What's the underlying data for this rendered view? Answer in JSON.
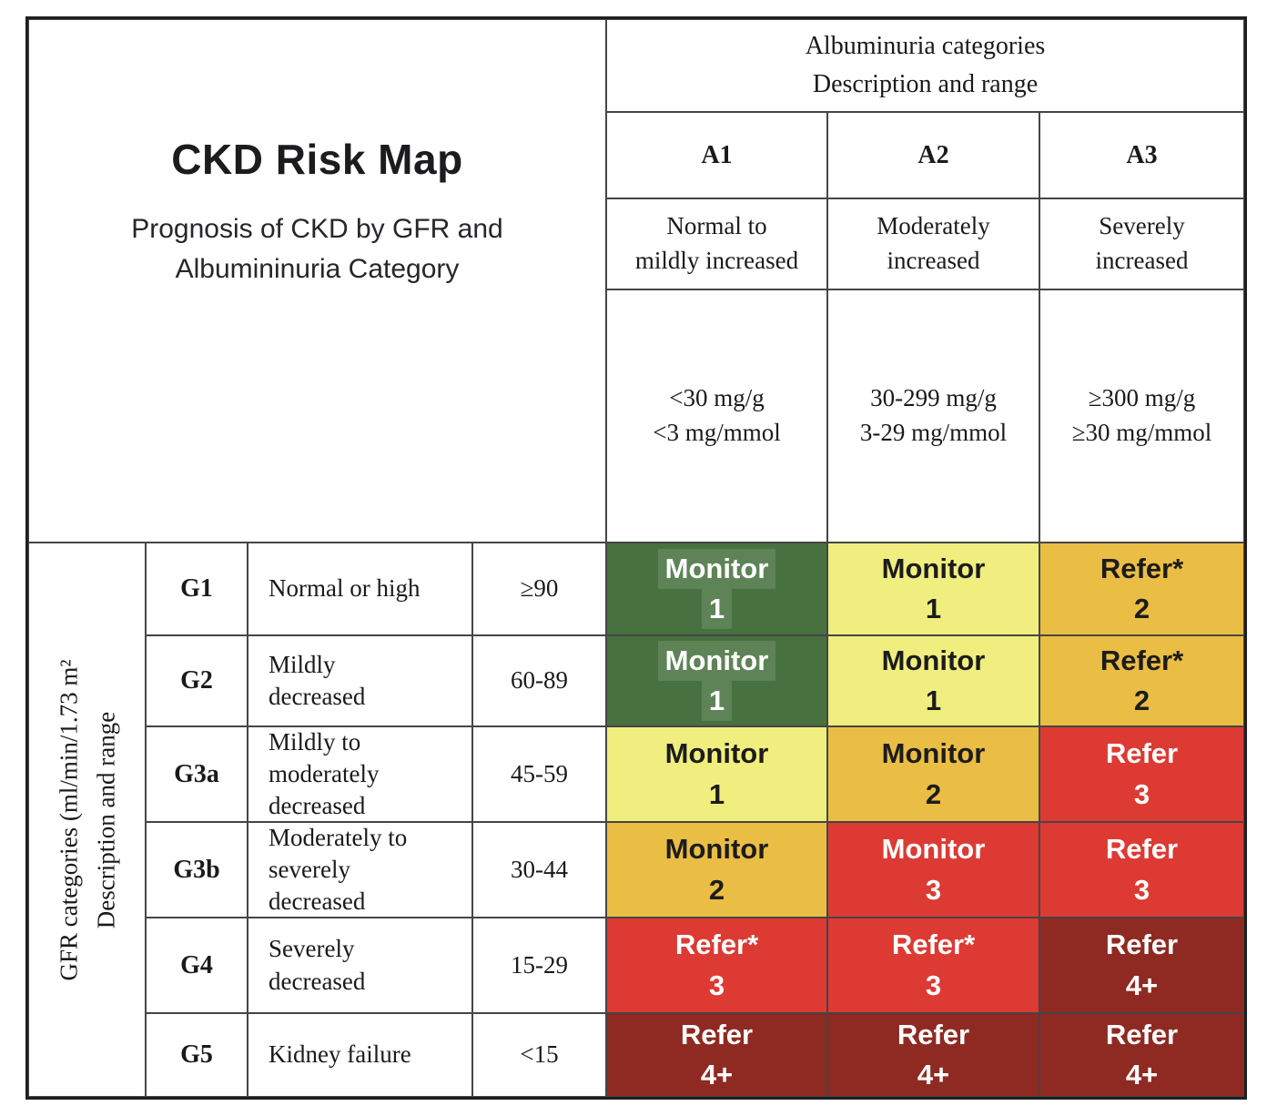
{
  "chart_data": {
    "type": "heatmap",
    "title": "CKD Risk Map",
    "subtitle": "Prognosis of CKD by GFR and\nAlbumininuria Category",
    "x_header": "Albuminuria categories\nDescription and range",
    "y_header": "GFR categories (ml/min/1.73 m²\nDescription and range",
    "x_categories": [
      {
        "code": "A1",
        "description": "Normal to\nmildly increased",
        "range": "<30 mg/g\n<3 mg/mmol"
      },
      {
        "code": "A2",
        "description": "Moderately\nincreased",
        "range": "30-299 mg/g\n3-29 mg/mmol"
      },
      {
        "code": "A3",
        "description": "Severely\nincreased",
        "range": "≥300 mg/g\n≥30 mg/mmol"
      }
    ],
    "y_categories": [
      {
        "code": "G1",
        "description": "Normal or high",
        "range": "≥90"
      },
      {
        "code": "G2",
        "description": "Mildly\ndecreased",
        "range": "60-89"
      },
      {
        "code": "G3a",
        "description": "Mildly to\nmoderately\ndecreased",
        "range": "45-59"
      },
      {
        "code": "G3b",
        "description": "Moderately to\nseverely\ndecreased",
        "range": "30-44"
      },
      {
        "code": "G4",
        "description": "Severely\ndecreased",
        "range": "15-29"
      },
      {
        "code": "G5",
        "description": "Kidney failure",
        "range": "<15"
      }
    ],
    "cells": [
      [
        {
          "action": "Monitor",
          "level": "1",
          "bg": "#47713F",
          "fg": "#FFFFFF"
        },
        {
          "action": "Monitor",
          "level": "1",
          "bg": "#F0EE7E",
          "fg": "#1C1C1C"
        },
        {
          "action": "Refer*",
          "level": "2",
          "bg": "#EABD44",
          "fg": "#1C1C1C"
        }
      ],
      [
        {
          "action": "Monitor",
          "level": "1",
          "bg": "#47713F",
          "fg": "#FFFFFF"
        },
        {
          "action": "Monitor",
          "level": "1",
          "bg": "#F0EE7E",
          "fg": "#1C1C1C"
        },
        {
          "action": "Refer*",
          "level": "2",
          "bg": "#EABD44",
          "fg": "#1C1C1C"
        }
      ],
      [
        {
          "action": "Monitor",
          "level": "1",
          "bg": "#F0EE7E",
          "fg": "#1C1C1C"
        },
        {
          "action": "Monitor",
          "level": "2",
          "bg": "#EABD44",
          "fg": "#1C1C1C"
        },
        {
          "action": "Refer",
          "level": "3",
          "bg": "#DC3A33",
          "fg": "#FFFFFF"
        }
      ],
      [
        {
          "action": "Monitor",
          "level": "2",
          "bg": "#EABD44",
          "fg": "#1C1C1C"
        },
        {
          "action": "Monitor",
          "level": "3",
          "bg": "#DC3A33",
          "fg": "#FFFFFF"
        },
        {
          "action": "Refer",
          "level": "3",
          "bg": "#DC3A33",
          "fg": "#FFFFFF"
        }
      ],
      [
        {
          "action": "Refer*",
          "level": "3",
          "bg": "#DC3A33",
          "fg": "#FFFFFF"
        },
        {
          "action": "Refer*",
          "level": "3",
          "bg": "#DC3A33",
          "fg": "#FFFFFF"
        },
        {
          "action": "Refer",
          "level": "4+",
          "bg": "#8F2A22",
          "fg": "#FFFFFF"
        }
      ],
      [
        {
          "action": "Refer",
          "level": "4+",
          "bg": "#8F2A22",
          "fg": "#FFFFFF"
        },
        {
          "action": "Refer",
          "level": "4+",
          "bg": "#8F2A22",
          "fg": "#FFFFFF"
        },
        {
          "action": "Refer",
          "level": "4+",
          "bg": "#8F2A22",
          "fg": "#FFFFFF"
        }
      ]
    ],
    "palette": {
      "green": "#47713F",
      "yellow": "#F0EE7E",
      "amber": "#EABD44",
      "red": "#DC3A33",
      "dark_red": "#8F2A22"
    }
  }
}
